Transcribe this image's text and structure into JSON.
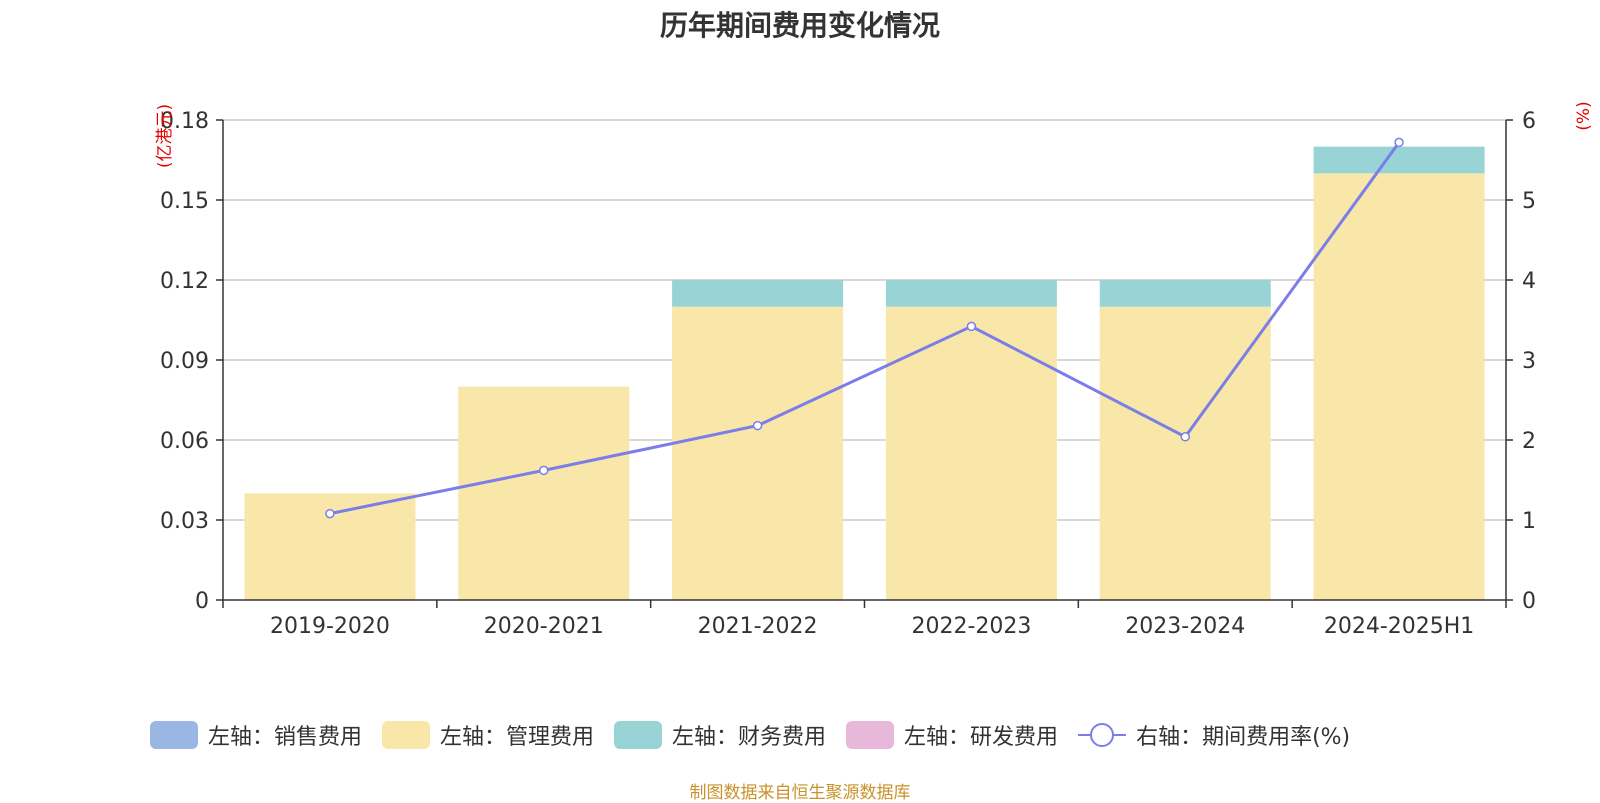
{
  "chart_data": {
    "type": "bar",
    "title": "历年期间费用变化情况",
    "categories": [
      "2019-2020",
      "2020-2021",
      "2021-2022",
      "2022-2023",
      "2023-2024",
      "2024-2025H1"
    ],
    "left_axis": {
      "unit": "(亿港元)",
      "ylim": [
        0,
        0.18
      ],
      "ticks": [
        "0",
        "0.03",
        "0.06",
        "0.09",
        "0.12",
        "0.15",
        "0.18"
      ]
    },
    "right_axis": {
      "unit": "(%)",
      "ylim": [
        0,
        6
      ],
      "ticks": [
        "0",
        "1",
        "2",
        "3",
        "4",
        "5",
        "6"
      ]
    },
    "series": [
      {
        "name": "左轴：销售费用",
        "type": "bar",
        "stack": true,
        "color": "#9ab6e3",
        "values": [
          0,
          0,
          0,
          0,
          0,
          0
        ]
      },
      {
        "name": "左轴：管理费用",
        "type": "bar",
        "stack": true,
        "color": "#f8e7a8",
        "values": [
          0.04,
          0.08,
          0.11,
          0.11,
          0.11,
          0.16
        ]
      },
      {
        "name": "左轴：财务费用",
        "type": "bar",
        "stack": true,
        "color": "#98d4d5",
        "values": [
          0,
          0,
          0.01,
          0.01,
          0.01,
          0.01
        ]
      },
      {
        "name": "左轴：研发费用",
        "type": "bar",
        "stack": true,
        "color": "#e8b8da",
        "values": [
          0,
          0,
          0,
          0,
          0,
          0
        ]
      },
      {
        "name": "右轴：期间费用率(%)",
        "type": "line",
        "axis": "right",
        "color": "#7b7ee8",
        "values": [
          1.08,
          1.62,
          2.18,
          3.42,
          2.04,
          5.72
        ]
      }
    ],
    "grid": true,
    "legend": "bottom"
  },
  "footer": "制图数据来自恒生聚源数据库"
}
